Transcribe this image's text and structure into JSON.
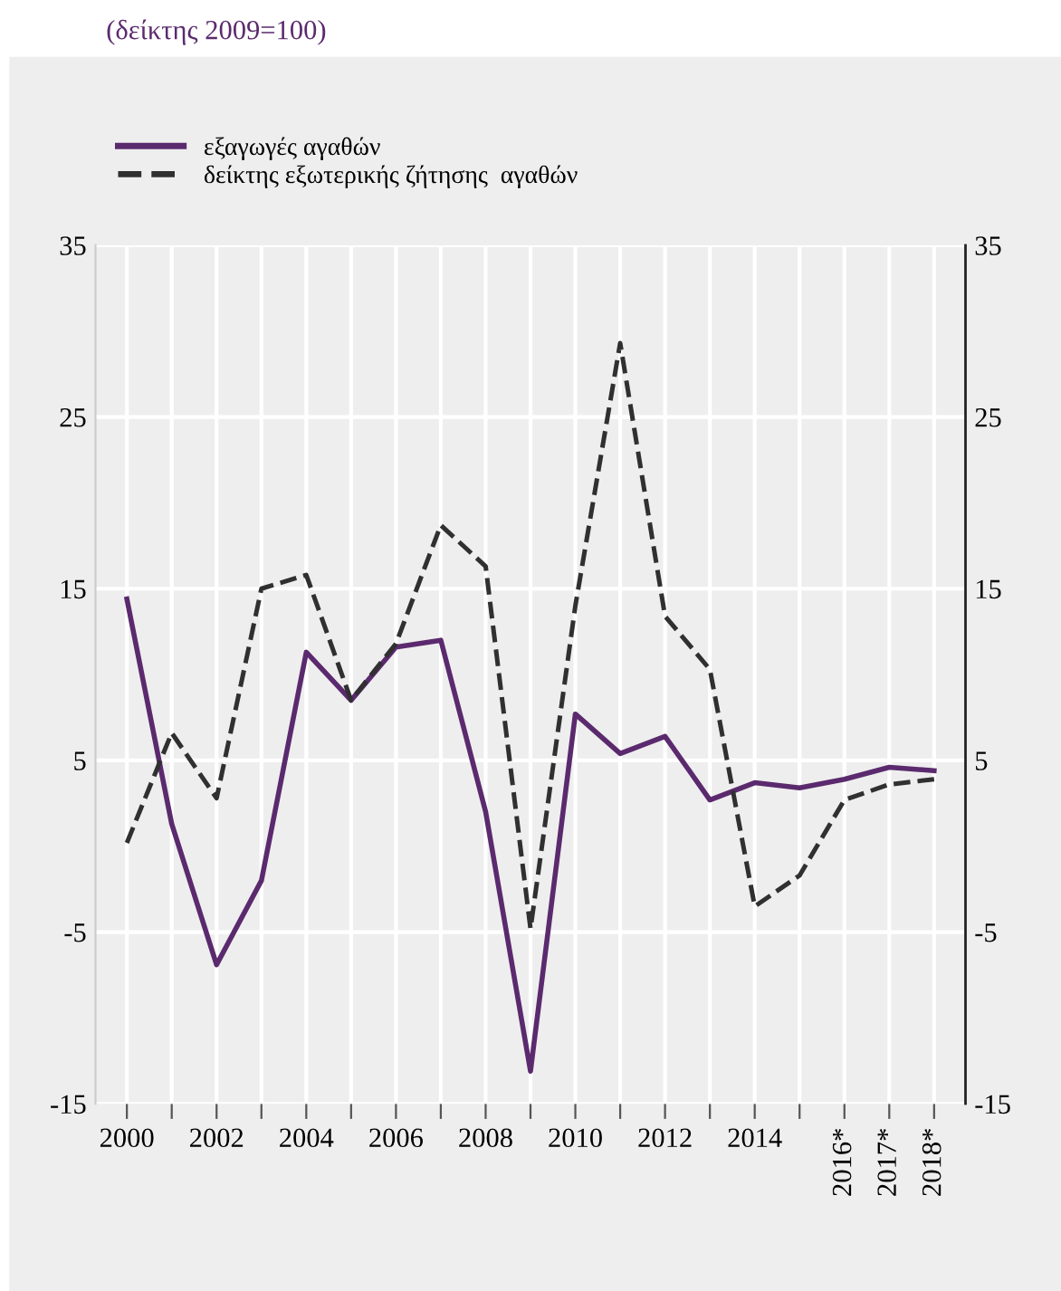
{
  "chart_data": {
    "type": "line",
    "title": "(δείκτης 2009=100)",
    "categories": [
      "2000",
      null,
      "2002",
      null,
      "2004",
      null,
      "2006",
      null,
      "2008",
      null,
      "2010",
      null,
      "2012",
      null,
      "2014",
      null,
      "2016*",
      "2017*",
      "2018*"
    ],
    "series": [
      {
        "name": "εξαγωγές αγαθών",
        "color": "#5b2a6e",
        "line_style": "solid",
        "values": [
          14.4,
          1.3,
          -6.9,
          -2,
          11.3,
          8.5,
          11.6,
          12,
          2,
          -13.1,
          7.7,
          5.4,
          6.4,
          2.7,
          3.7,
          3.4,
          3.9,
          4.6,
          4.4
        ]
      },
      {
        "name": "δείκτης εξωτερικής ζήτησης  αγαθών",
        "color": "#303030",
        "line_style": "dashed",
        "values": [
          0.2,
          6.6,
          2.8,
          15,
          15.8,
          8.5,
          11.8,
          18.7,
          16.3,
          -4.8,
          14,
          29.3,
          13.4,
          10.3,
          -3.5,
          -1.7,
          2.7,
          3.6,
          3.9
        ]
      }
    ],
    "ylim": [
      -15,
      35
    ],
    "yticks": [
      -15,
      -5,
      5,
      15,
      25,
      35
    ],
    "y2lim": [
      -15,
      35
    ],
    "y2ticks": [
      -15,
      -5,
      5,
      15,
      25,
      35
    ],
    "grid": true,
    "legend": "top left"
  }
}
